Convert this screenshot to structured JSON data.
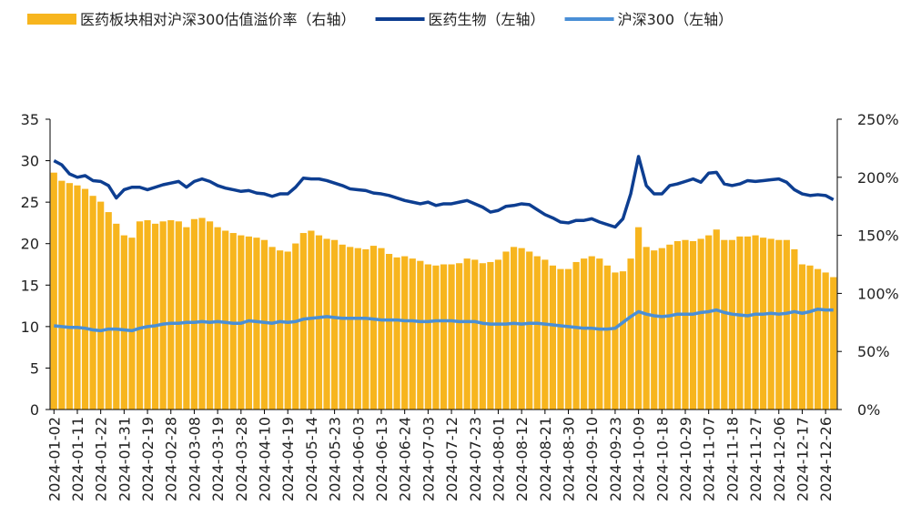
{
  "chart_data": {
    "type": "bar-line",
    "categories": [
      "2024-01-02",
      null,
      null,
      "2024-01-11",
      null,
      null,
      "2024-01-22",
      null,
      null,
      "2024-01-31",
      null,
      null,
      "2024-02-19",
      null,
      null,
      "2024-02-28",
      null,
      null,
      "2024-03-08",
      null,
      null,
      "2024-03-19",
      null,
      null,
      "2024-03-28",
      null,
      null,
      "2024-04-10",
      null,
      null,
      "2024-04-19",
      null,
      null,
      "2024-05-14",
      null,
      null,
      "2024-05-23",
      null,
      null,
      "2024-06-03",
      null,
      null,
      "2024-06-13",
      null,
      null,
      "2024-06-24",
      null,
      null,
      "2024-07-03",
      null,
      null,
      "2024-07-12",
      null,
      null,
      "2024-07-23",
      null,
      null,
      "2024-08-01",
      null,
      null,
      "2024-08-12",
      null,
      null,
      "2024-08-21",
      null,
      null,
      "2024-08-30",
      null,
      null,
      "2024-09-10",
      null,
      null,
      "2024-09-23",
      null,
      null,
      "2024-10-09",
      null,
      null,
      "2024-10-18",
      null,
      null,
      "2024-10-29",
      null,
      null,
      "2024-11-07",
      null,
      null,
      "2024-11-18",
      null,
      null,
      "2024-11-27",
      null,
      null,
      "2024-12-06",
      null,
      null,
      "2024-12-17",
      null,
      null,
      "2024-12-26",
      null
    ],
    "series": [
      {
        "name": "医药板块相对沪深300估值溢价率（右轴）",
        "kind": "bar",
        "axis": "y2",
        "color": "#f7b51e",
        "values": [
          204,
          197,
          195,
          193,
          190,
          184,
          179,
          170,
          160,
          150,
          148,
          162,
          163,
          160,
          162,
          163,
          162,
          157,
          164,
          165,
          162,
          157,
          154,
          152,
          150,
          149,
          148,
          146,
          140,
          137,
          136,
          143,
          152,
          154,
          150,
          147,
          146,
          142,
          140,
          139,
          138,
          141,
          139,
          134,
          131,
          132,
          130,
          128,
          125,
          124,
          125,
          125,
          126,
          130,
          129,
          126,
          127,
          129,
          136,
          140,
          139,
          136,
          132,
          129,
          124,
          121,
          121,
          127,
          130,
          132,
          130,
          124,
          118,
          119,
          130,
          157,
          140,
          137,
          139,
          142,
          145,
          146,
          145,
          147,
          150,
          155,
          146,
          146,
          149,
          149,
          150,
          148,
          147,
          146,
          146,
          138,
          125,
          124,
          121,
          118,
          114
        ]
      },
      {
        "name": "医药生物（左轴）",
        "kind": "line",
        "color": "#0d3e91",
        "values": [
          30,
          29.5,
          28.4,
          28,
          28.2,
          27.6,
          27.5,
          27,
          25.5,
          26.5,
          26.8,
          26.8,
          26.5,
          26.8,
          27.1,
          27.3,
          27.5,
          26.8,
          27.5,
          27.8,
          27.5,
          27,
          26.7,
          26.5,
          26.3,
          26.4,
          26.1,
          26,
          25.7,
          26,
          26,
          26.8,
          27.9,
          27.8,
          27.8,
          27.6,
          27.3,
          27,
          26.6,
          26.5,
          26.4,
          26.1,
          26,
          25.8,
          25.5,
          25.2,
          25,
          24.8,
          25,
          24.6,
          24.8,
          24.8,
          25,
          25.2,
          24.8,
          24.4,
          23.8,
          24,
          24.5,
          24.6,
          24.8,
          24.7,
          24.1,
          23.5,
          23.1,
          22.6,
          22.5,
          22.8,
          22.8,
          23,
          22.6,
          22.3,
          22,
          23,
          26,
          30.5,
          27,
          26,
          26,
          27,
          27.2,
          27.5,
          27.8,
          27.4,
          28.5,
          28.6,
          27.2,
          27,
          27.2,
          27.6,
          27.5,
          27.6,
          27.7,
          27.8,
          27.4,
          26.5,
          26,
          25.8,
          25.9,
          25.8,
          25.3
        ]
      },
      {
        "name": "沪深300（左轴）",
        "kind": "line",
        "color": "#4a8fd6",
        "values": [
          10.1,
          10,
          9.9,
          9.9,
          9.8,
          9.6,
          9.5,
          9.7,
          9.7,
          9.6,
          9.5,
          9.8,
          10,
          10.1,
          10.3,
          10.4,
          10.4,
          10.5,
          10.5,
          10.6,
          10.5,
          10.6,
          10.5,
          10.4,
          10.4,
          10.7,
          10.6,
          10.5,
          10.4,
          10.6,
          10.5,
          10.6,
          10.9,
          11,
          11.1,
          11.2,
          11.1,
          11,
          11,
          11,
          11,
          10.9,
          10.8,
          10.8,
          10.8,
          10.7,
          10.7,
          10.6,
          10.6,
          10.7,
          10.7,
          10.7,
          10.6,
          10.6,
          10.6,
          10.4,
          10.3,
          10.3,
          10.3,
          10.4,
          10.3,
          10.4,
          10.4,
          10.3,
          10.2,
          10.1,
          10,
          9.9,
          9.8,
          9.8,
          9.7,
          9.7,
          9.8,
          10.5,
          11.2,
          11.8,
          11.5,
          11.3,
          11.2,
          11.3,
          11.5,
          11.5,
          11.5,
          11.7,
          11.8,
          12,
          11.7,
          11.5,
          11.4,
          11.3,
          11.5,
          11.5,
          11.6,
          11.5,
          11.6,
          11.8,
          11.6,
          11.8,
          12.1,
          12,
          12
        ]
      }
    ],
    "ylim": [
      0,
      35
    ],
    "yticks": [
      0,
      5,
      10,
      15,
      20,
      25,
      30,
      35
    ],
    "y2lim": [
      0,
      250
    ],
    "y2ticks": [
      {
        "value": 0,
        "label": "0%"
      },
      {
        "value": 50,
        "label": "50%"
      },
      {
        "value": 100,
        "label": "100%"
      },
      {
        "value": 150,
        "label": "150%"
      },
      {
        "value": 200,
        "label": "200%"
      },
      {
        "value": 250,
        "label": "250%"
      }
    ],
    "legend": "top"
  }
}
